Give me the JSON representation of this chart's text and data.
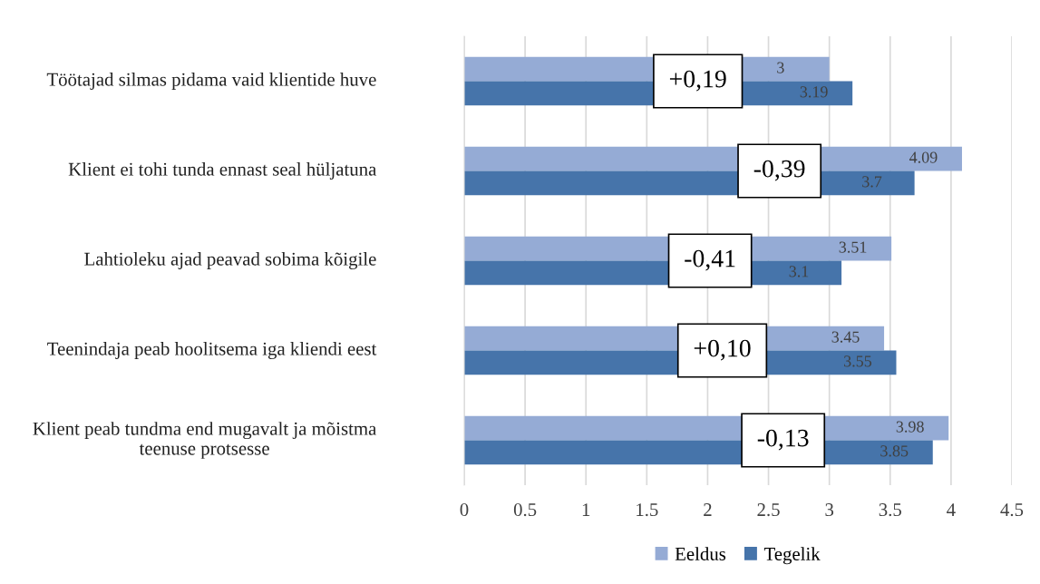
{
  "chart_data": {
    "type": "bar",
    "orientation": "horizontal",
    "categories": [
      "Töötajad silmas pidama vaid klientide huve",
      "Klient ei tohi tunda ennast seal hüljatuna",
      "Lahtioleku ajad peavad sobima kõigile",
      "Teenindaja peab hoolitsema iga kliendi eest",
      "Klient peab tundma end mugavalt ja mõistma teenuse protsesse"
    ],
    "series": [
      {
        "name": "Eeldus",
        "color": "#95abd5",
        "values": [
          3,
          4.09,
          3.51,
          3.45,
          3.98
        ]
      },
      {
        "name": "Tegelik",
        "color": "#4674aa",
        "values": [
          3.19,
          3.7,
          3.1,
          3.55,
          3.85
        ]
      }
    ],
    "xlim": [
      0,
      4.5
    ],
    "xticks": [
      0,
      0.5,
      1,
      1.5,
      2,
      2.5,
      3,
      3.5,
      4,
      4.5
    ],
    "grid": "x",
    "legend": "bottom",
    "data_labels": true,
    "annotations": [
      {
        "text": "+0,19",
        "x": 1.92,
        "y": "Töötajad silmas pidama vaid klientide huve"
      },
      {
        "text": "-0,39",
        "x": 2.59,
        "y": "Klient ei tohi tunda ennast seal hüljatuna"
      },
      {
        "text": "-0,41",
        "x": 2.02,
        "y": "Lahtioleku ajad peavad sobima kõigile"
      },
      {
        "text": "+0,10",
        "x": 2.12,
        "y": "Teenindaja peab hoolitsema iga kliendi eest"
      },
      {
        "text": "-0,13",
        "x": 2.62,
        "y": "Klient peab tundma end mugavalt ja mõistma teenuse protsesse"
      }
    ]
  }
}
